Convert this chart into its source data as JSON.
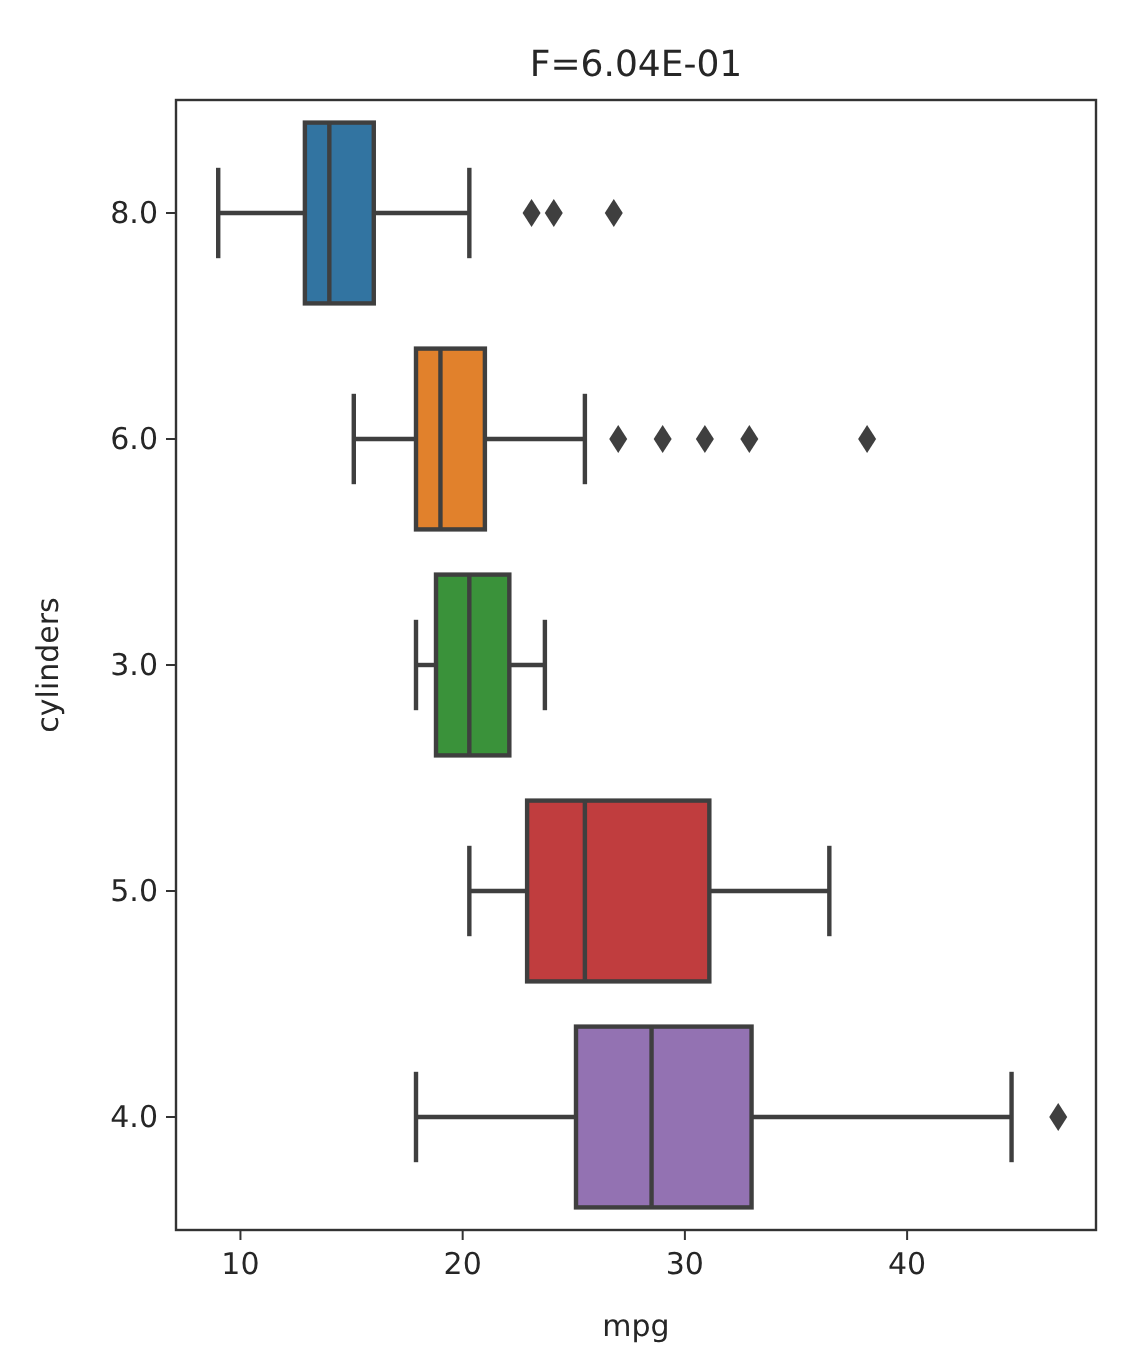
{
  "chart_data": {
    "type": "box",
    "title": "F=6.04E-01",
    "xlabel": "mpg",
    "ylabel": "cylinders",
    "orientation": "horizontal",
    "categories": [
      "8.0",
      "6.0",
      "3.0",
      "5.0",
      "4.0"
    ],
    "colors": [
      "#3274a1",
      "#e1812c",
      "#3a923a",
      "#c03d3e",
      "#9372b2"
    ],
    "boxes": [
      {
        "low": 9.0,
        "q1": 12.9,
        "median": 14.0,
        "q3": 16.0,
        "high": 20.3,
        "outliers": [
          23.1,
          24.1,
          26.8
        ]
      },
      {
        "low": 15.1,
        "q1": 17.9,
        "median": 19.0,
        "q3": 21.0,
        "high": 25.5,
        "outliers": [
          27.0,
          29.0,
          30.9,
          32.9,
          38.2
        ]
      },
      {
        "low": 17.9,
        "q1": 18.8,
        "median": 20.3,
        "q3": 22.1,
        "high": 23.7
      },
      {
        "low": 20.3,
        "q1": 22.9,
        "median": 25.5,
        "q3": 31.1,
        "high": 36.5
      },
      {
        "low": 17.9,
        "q1": 25.1,
        "median": 28.5,
        "q3": 33.0,
        "high": 44.7,
        "outliers": [
          46.8
        ]
      }
    ],
    "xlim": [
      7.1,
      48.5
    ],
    "xticks": [
      10,
      20,
      30,
      40
    ]
  }
}
